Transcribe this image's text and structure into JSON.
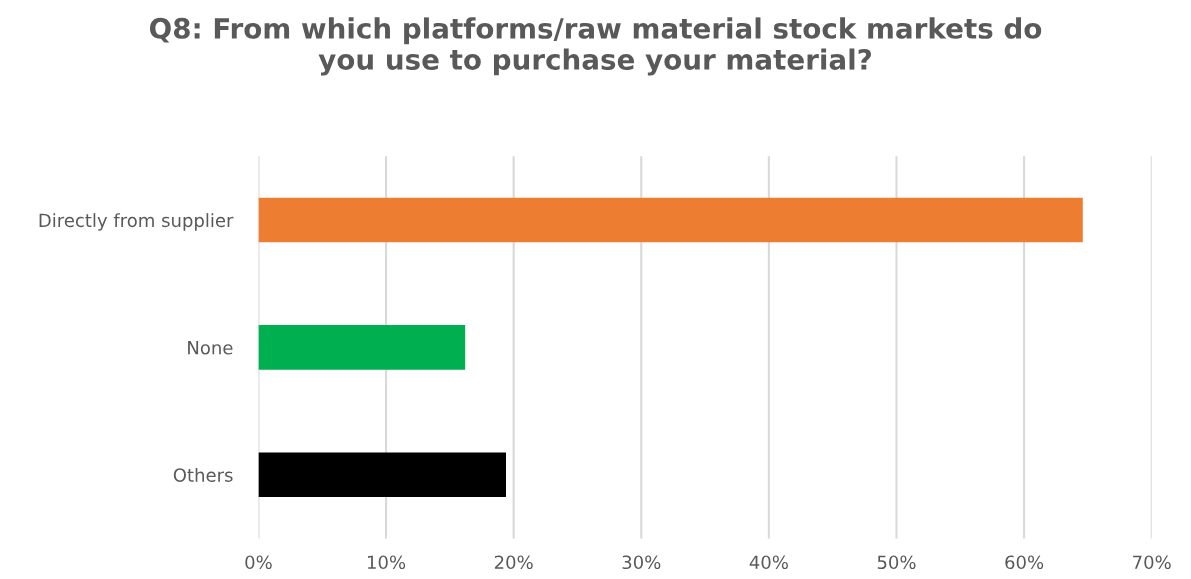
{
  "chart_data": {
    "type": "bar",
    "orientation": "horizontal",
    "title": "Q8: From which platforms/raw material stock markets do\nyou use to purchase your material?",
    "categories": [
      "Directly from supplier",
      "None",
      "Others"
    ],
    "values": [
      64.6,
      16.2,
      19.4
    ],
    "colors": [
      "#ed7d31",
      "#00b050",
      "#000000"
    ],
    "xlim": [
      0,
      70
    ],
    "xticks": [
      {
        "value": 0,
        "label": "0%"
      },
      {
        "value": 10,
        "label": "10%"
      },
      {
        "value": 20,
        "label": "20%"
      },
      {
        "value": 30,
        "label": "30%"
      },
      {
        "value": 40,
        "label": "40%"
      },
      {
        "value": 50,
        "label": "50%"
      },
      {
        "value": 60,
        "label": "60%"
      },
      {
        "value": 70,
        "label": "70%"
      }
    ],
    "grid": "x",
    "legend": false
  }
}
